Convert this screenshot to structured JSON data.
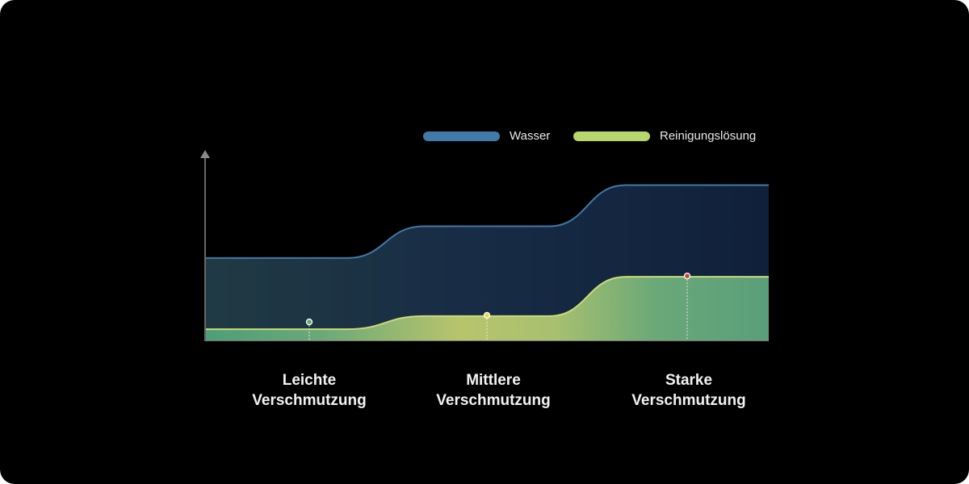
{
  "chart_data": {
    "type": "area",
    "title": "",
    "xlabel": "",
    "ylabel": "",
    "categories": [
      "Leichte Verschmutzung",
      "Mittlere Verschmutzung",
      "Starke Verschmutzung"
    ],
    "category_lines": [
      [
        "Leichte",
        "Verschmutzung"
      ],
      [
        "Mittlere",
        "Verschmutzung"
      ],
      [
        "Starke",
        "Verschmutzung"
      ]
    ],
    "ylim": [
      0,
      100
    ],
    "y_ticks_shown": false,
    "grid": false,
    "legend_position": "top-right",
    "series": [
      {
        "name": "Wasser",
        "values": [
          44,
          61,
          83
        ],
        "color": "#3f7aa8"
      },
      {
        "name": "Reinigungslösung",
        "values": [
          6,
          13,
          34
        ],
        "color": "#b7d76c"
      }
    ],
    "markers": [
      {
        "category": "Leichte Verschmutzung",
        "color": "#5fa870"
      },
      {
        "category": "Mittlere Verschmutzung",
        "color": "#e8d84a"
      },
      {
        "category": "Starke Verschmutzung",
        "color": "#c9442a"
      }
    ]
  }
}
